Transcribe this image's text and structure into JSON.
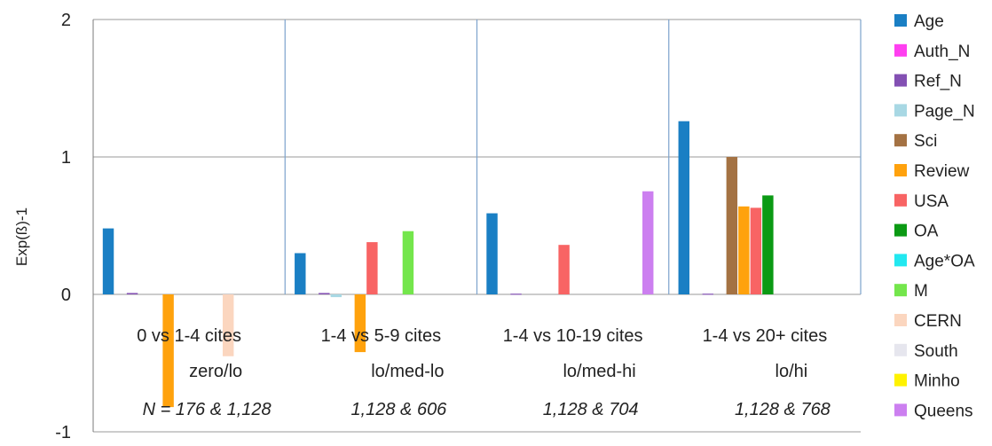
{
  "chart_data": {
    "type": "bar",
    "ylabel": "Exp(ß)-1",
    "ylim": [
      -1,
      2
    ],
    "yticks": [
      -1,
      0,
      1,
      2
    ],
    "grid": true,
    "legend_position": "right",
    "series": [
      {
        "name": "Age",
        "color": "#1a7fc4"
      },
      {
        "name": "Auth_N",
        "color": "#ff3ff0"
      },
      {
        "name": "Ref_N",
        "color": "#8350b3"
      },
      {
        "name": "Page_N",
        "color": "#a8d8e4"
      },
      {
        "name": "Sci",
        "color": "#a47243"
      },
      {
        "name": "Review",
        "color": "#ffa20d"
      },
      {
        "name": "USA",
        "color": "#f86464"
      },
      {
        "name": "OA",
        "color": "#0b9a14"
      },
      {
        "name": "Age*OA",
        "color": "#22e8f0"
      },
      {
        "name": "M",
        "color": "#74e64c"
      },
      {
        "name": "CERN",
        "color": "#fbd6bf"
      },
      {
        "name": "South",
        "color": "#e6e6ee"
      },
      {
        "name": "Minho",
        "color": "#fff200"
      },
      {
        "name": "Queens",
        "color": "#cc7ff0"
      }
    ],
    "groups": [
      {
        "label": "0 vs 1-4 cites",
        "sublabel": "zero/lo",
        "n_label": "N = 176 & 1,128",
        "values": [
          0.48,
          0,
          0.01,
          0,
          0,
          -0.82,
          0,
          0,
          0,
          0,
          -0.45,
          0,
          0,
          0
        ]
      },
      {
        "label": "1-4 vs 5-9 cites",
        "sublabel": "lo/med-lo",
        "n_label": "1,128 & 606",
        "values": [
          0.3,
          0,
          0.01,
          -0.02,
          0,
          -0.42,
          0.38,
          0,
          0,
          0.46,
          0,
          0,
          0,
          0
        ]
      },
      {
        "label": "1-4 vs 10-19 cites",
        "sublabel": "lo/med-hi",
        "n_label": "1,128 & 704",
        "values": [
          0.59,
          0,
          0.005,
          0,
          0,
          0,
          0.36,
          0,
          0,
          0,
          0,
          0,
          0,
          0.75
        ]
      },
      {
        "label": "1-4 vs 20+ cites",
        "sublabel": "lo/hi",
        "n_label": "1,128 & 768",
        "values": [
          1.26,
          0,
          0.005,
          0,
          1.0,
          0.64,
          0.63,
          0.72,
          0,
          0,
          0,
          0,
          0,
          0
        ]
      }
    ]
  }
}
